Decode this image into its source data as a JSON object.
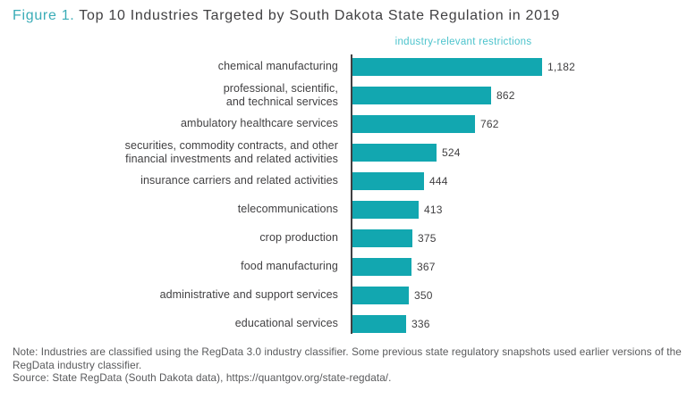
{
  "title": {
    "prefix": "Figure 1.",
    "main": " Top 10 Industries Targeted by South Dakota State Regulation in 2019"
  },
  "chart_data": {
    "type": "bar",
    "orientation": "horizontal",
    "title": "Figure 1. Top 10 Industries Targeted by South Dakota State Regulation in 2019",
    "series_label": "industry-relevant restrictions",
    "categories": [
      "chemical manufacturing",
      "professional, scientific,\nand technical services",
      "ambulatory healthcare services",
      "securities, commodity contracts, and other\nfinancial investments and related activities",
      "insurance carriers and related activities",
      "telecommunications",
      "crop production",
      "food manufacturing",
      "administrative and support services",
      "educational services"
    ],
    "values": [
      1182,
      862,
      762,
      524,
      444,
      413,
      375,
      367,
      350,
      336
    ],
    "value_labels": [
      "1,182",
      "862",
      "762",
      "524",
      "444",
      "413",
      "375",
      "367",
      "350",
      "336"
    ],
    "xlim": [
      0,
      1182
    ],
    "grid": false,
    "legend_position": "top",
    "bar_color": "#12a7b0"
  },
  "notes": {
    "note": "Note: Industries are classified using the RegData 3.0 industry classifier. Some previous state regulatory snapshots used earlier versions of the RegData industry classifier.",
    "source": "Source: State RegData (South Dakota data), https://quantgov.org/state-regdata/."
  },
  "colors": {
    "bar": "#12a7b0",
    "figure_label": "#3aacb7",
    "series_label": "#4cc3cc",
    "text_dark": "#414042",
    "note_text": "#58595b",
    "axis": "#414042",
    "background": "#ffffff"
  }
}
